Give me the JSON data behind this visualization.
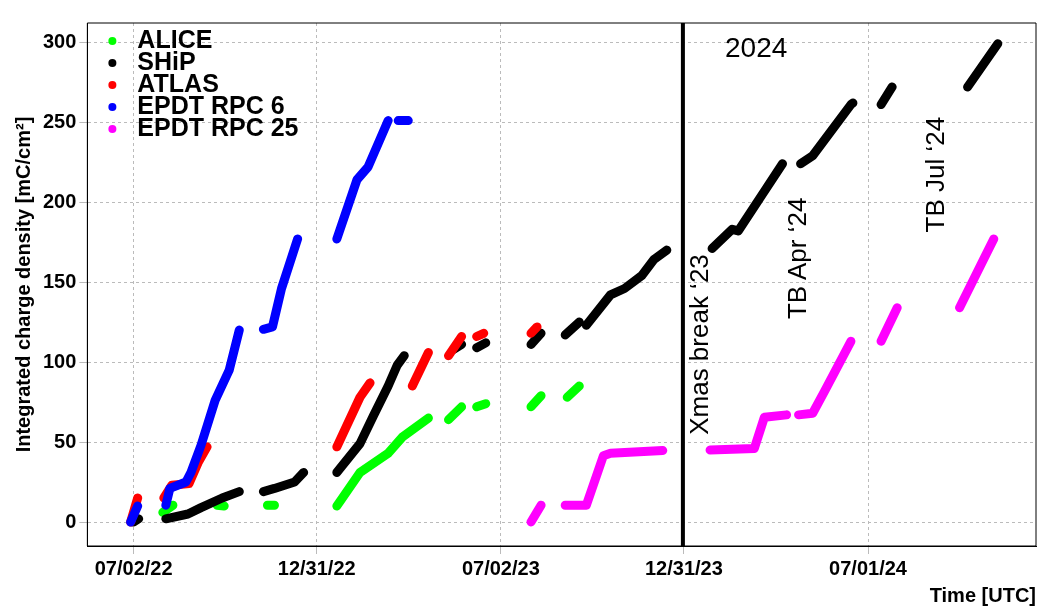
{
  "chart_data": {
    "type": "line",
    "xlabel": "Time [UTC]",
    "ylabel": "Integrated charge density [mC/cm²]",
    "xlim": [
      "2022-05-17",
      "2024-12-15"
    ],
    "ylim": [
      -15,
      312
    ],
    "xticks": [
      {
        "value": "2022-07-02",
        "label": "07/02/22"
      },
      {
        "value": "2022-12-31",
        "label": "12/31/22"
      },
      {
        "value": "2023-07-02",
        "label": "07/02/23"
      },
      {
        "value": "2023-12-31",
        "label": "12/31/23"
      },
      {
        "value": "2024-07-01",
        "label": "07/01/24"
      }
    ],
    "yticks": [
      0,
      50,
      100,
      150,
      200,
      250,
      300
    ],
    "grid": true,
    "legend": "top left",
    "line_style": "solid",
    "ref_lines": [
      {
        "axis": "x",
        "value": "2023-12-30",
        "label": "Xmas break ‘23",
        "color": "#000000"
      }
    ],
    "annotations": [
      "2024",
      "TB Apr ‘24",
      "TB Jul ‘24"
    ],
    "series": [
      {
        "name": "ALICE",
        "color": "#00ff00",
        "x": [
          "2022-07-31",
          "2022-08-10",
          "2022-08-18",
          "2022-09-23",
          "2022-09-30",
          "2022-10-30",
          "2022-11-12",
          "2022-11-19",
          "2022-12-30",
          "2023-01-20",
          "2023-02-12",
          "2023-03-12",
          "2023-03-26",
          "2023-04-21",
          "2023-05-01",
          "2023-05-11",
          "2023-05-24",
          "2023-06-01",
          "2023-06-08",
          "2023-06-17",
          "2023-07-15",
          "2023-08-01",
          "2023-08-11",
          "2023-08-20",
          "2023-09-06",
          "2023-09-18"
        ],
        "values": [
          6,
          10.5,
          null,
          10.5,
          10,
          null,
          10.5,
          10.5,
          null,
          10,
          31,
          43,
          53,
          65,
          null,
          64,
          72,
          null,
          72,
          74,
          null,
          72,
          79,
          null,
          78,
          85
        ]
      },
      {
        "name": "SHiP",
        "color": "#000000",
        "x": [
          "2022-07-02",
          "2022-07-07",
          "2022-07-20",
          "2022-08-03",
          "2022-08-25",
          "2022-09-07",
          "2022-09-28",
          "2022-10-15",
          "2022-10-30",
          "2022-11-08",
          "2022-11-19",
          "2022-12-09",
          "2022-12-18",
          "2023-01-05",
          "2023-01-20",
          "2023-02-12",
          "2023-02-25",
          "2023-03-12",
          "2023-03-21",
          "2023-03-28",
          "2023-05-01",
          "2023-05-16",
          "2023-05-24",
          "2023-06-01",
          "2023-06-08",
          "2023-06-17",
          "2023-07-15",
          "2023-08-01",
          "2023-08-11",
          "2023-08-20",
          "2023-09-04",
          "2023-09-18",
          "2023-09-22",
          "2023-09-25",
          "2023-10-19",
          "2023-11-02",
          "2023-11-19",
          "2023-12-01",
          "2023-12-14",
          "2024-01-10",
          "2024-01-28",
          "2024-02-17",
          "2024-02-23",
          "2024-04-07",
          "2024-04-16",
          "2024-04-25",
          "2024-05-07",
          "2024-06-14",
          "2024-06-16",
          "2024-06-30",
          "2024-07-14",
          "2024-07-25",
          "2024-09-01",
          "2024-10-08",
          "2024-11-07"
        ],
        "values": [
          0,
          2,
          null,
          2,
          5,
          9,
          15,
          19,
          null,
          19,
          21,
          25,
          31,
          null,
          31,
          49,
          66,
          85,
          98,
          104,
          null,
          108,
          111,
          null,
          109,
          112,
          null,
          111,
          118,
          null,
          117,
          125,
          null,
          123,
          142,
          146,
          154,
          164,
          170,
          null,
          171,
          183,
          182,
          224,
          null,
          224,
          229,
          261,
          262,
          null,
          261,
          272,
          null,
          272,
          299
        ]
      },
      {
        "name": "ATLAS",
        "color": "#ff0000",
        "x": [
          "2022-06-29",
          "2022-07-06",
          "2022-07-20",
          "2022-08-01",
          "2022-08-09",
          "2022-08-26",
          "2022-09-04",
          "2022-09-13",
          "2022-12-01",
          "2023-01-20",
          "2023-02-12",
          "2023-02-22",
          "2023-03-20",
          "2023-04-05",
          "2023-04-21",
          "2023-05-01",
          "2023-05-11",
          "2023-05-24",
          "2023-06-01",
          "2023-06-08",
          "2023-06-15",
          "2023-07-15",
          "2023-08-01",
          "2023-08-07"
        ],
        "values": [
          0,
          15,
          null,
          15,
          23,
          24,
          37,
          47,
          null,
          47,
          78,
          87,
          null,
          85,
          106,
          null,
          104,
          116,
          null,
          116,
          118,
          null,
          118,
          122
        ]
      },
      {
        "name": "EPDT RPC 6",
        "color": "#0000ff",
        "x": [
          "2022-06-29",
          "2022-07-06",
          "2022-07-20",
          "2022-08-03",
          "2022-08-07",
          "2022-08-23",
          "2022-08-28",
          "2022-09-07",
          "2022-09-21",
          "2022-10-05",
          "2022-10-15",
          "2022-10-30",
          "2022-11-08",
          "2022-11-17",
          "2022-11-26",
          "2022-12-12",
          "2023-01-05",
          "2023-01-20",
          "2023-02-09",
          "2023-02-20",
          "2023-03-12",
          "2023-03-17",
          "2023-03-22",
          "2023-04-01"
        ],
        "values": [
          0,
          10,
          null,
          10.5,
          21,
          25,
          31,
          48,
          76,
          95,
          120,
          null,
          120.5,
          122,
          146,
          177,
          null,
          177,
          214,
          222,
          251,
          null,
          251,
          251
        ]
      },
      {
        "name": "EPDT RPC 25",
        "color": "#ff00ff",
        "x": [
          "2023-08-01",
          "2023-08-11",
          "2023-08-20",
          "2023-09-04",
          "2023-09-25",
          "2023-10-12",
          "2023-10-19",
          "2023-12-10",
          "2024-01-10",
          "2024-01-26",
          "2024-03-10",
          "2024-03-20",
          "2024-04-11",
          "2024-04-17",
          "2024-04-23",
          "2024-05-07",
          "2024-05-19",
          "2024-06-14",
          "2024-06-30",
          "2024-07-14",
          "2024-07-30",
          "2024-09-01",
          "2024-09-30",
          "2024-11-03"
        ],
        "values": [
          0,
          10.5,
          null,
          10.5,
          10.5,
          41.5,
          43,
          44.7,
          null,
          45,
          46,
          65.5,
          67,
          null,
          67,
          68,
          82,
          113,
          null,
          113,
          134,
          null,
          134,
          177
        ]
      }
    ]
  }
}
